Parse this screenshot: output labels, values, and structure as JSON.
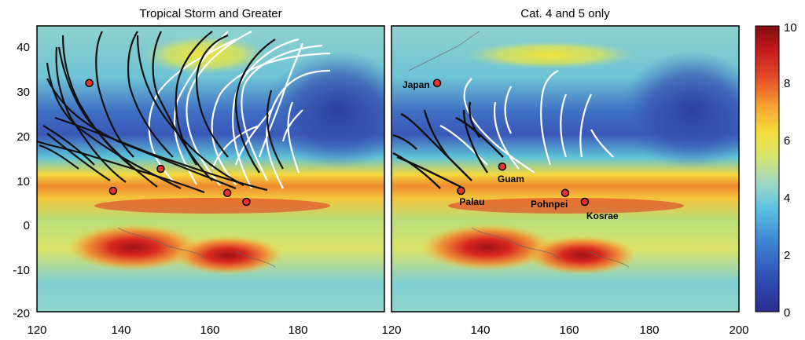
{
  "panels": [
    {
      "id": "left",
      "title": "Tropical Storm and Greater",
      "x_ticks": [
        "120",
        "140",
        "160",
        "180"
      ],
      "y_ticks": [
        "40",
        "30",
        "20",
        "10",
        "0",
        "-10",
        "-20"
      ],
      "markers": [
        {
          "lon": 131,
          "lat": 32
        },
        {
          "lon": 146,
          "lat": 12.5
        },
        {
          "lon": 136,
          "lat": 7.5
        },
        {
          "lon": 160,
          "lat": 7
        },
        {
          "lon": 164,
          "lat": 5
        }
      ]
    },
    {
      "id": "right",
      "title": "Cat. 4 and 5 only",
      "x_ticks": [
        "120",
        "140",
        "160",
        "180",
        "200"
      ],
      "locations": [
        {
          "name": "Japan",
          "lon": 130.5,
          "lat": 32
        },
        {
          "name": "Guam",
          "lon": 145.5,
          "lat": 13
        },
        {
          "name": "Palau",
          "lon": 136,
          "lat": 7.5
        },
        {
          "name": "Pohnpei",
          "lon": 160,
          "lat": 7
        },
        {
          "name": "Kosrae",
          "lon": 164.5,
          "lat": 5
        }
      ]
    }
  ],
  "colorbar": {
    "ticks": [
      "10",
      "8",
      "6",
      "4",
      "2",
      "0"
    ],
    "min": 0,
    "max": 10,
    "colors": [
      "#2c2e93",
      "#3a5ec0",
      "#4aa2de",
      "#7fd0d6",
      "#bfe08a",
      "#f0e34a",
      "#f7a63a",
      "#e8462c",
      "#c01a1c",
      "#8a1010"
    ]
  }
}
